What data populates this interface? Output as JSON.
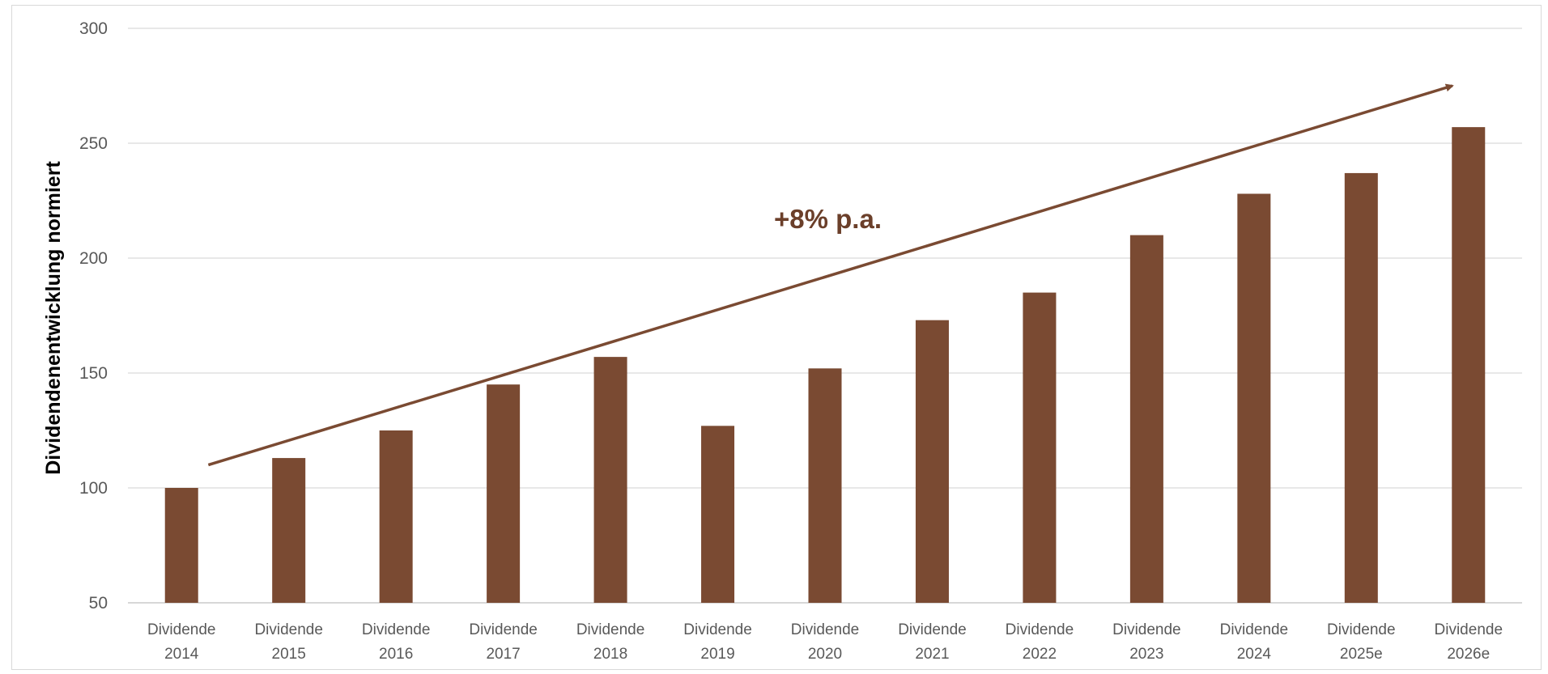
{
  "chart_data": {
    "type": "bar",
    "categories": [
      [
        "Dividende",
        "2014"
      ],
      [
        "Dividende",
        "2015"
      ],
      [
        "Dividende",
        "2016"
      ],
      [
        "Dividende",
        "2017"
      ],
      [
        "Dividende",
        "2018"
      ],
      [
        "Dividende",
        "2019"
      ],
      [
        "Dividende",
        "2020"
      ],
      [
        "Dividende",
        "2021"
      ],
      [
        "Dividende",
        "2022"
      ],
      [
        "Dividende",
        "2023"
      ],
      [
        "Dividende",
        "2024"
      ],
      [
        "Dividende",
        "2025e"
      ],
      [
        "Dividende",
        "2026e"
      ]
    ],
    "values": [
      100,
      113,
      125,
      145,
      157,
      127,
      152,
      173,
      185,
      210,
      228,
      237,
      257
    ],
    "title": "",
    "xlabel": "",
    "ylabel": "Dividendenentwicklung normiert",
    "ylim": [
      50,
      300
    ],
    "yticks": [
      50,
      100,
      150,
      200,
      250,
      300
    ],
    "grid": true,
    "bar_color": "#7a4a32",
    "annotation": {
      "text": "+8% p.a.",
      "color": "#6b3f2a",
      "trend_start": [
        0.25,
        110
      ],
      "trend_end": [
        11.85,
        275
      ]
    }
  }
}
